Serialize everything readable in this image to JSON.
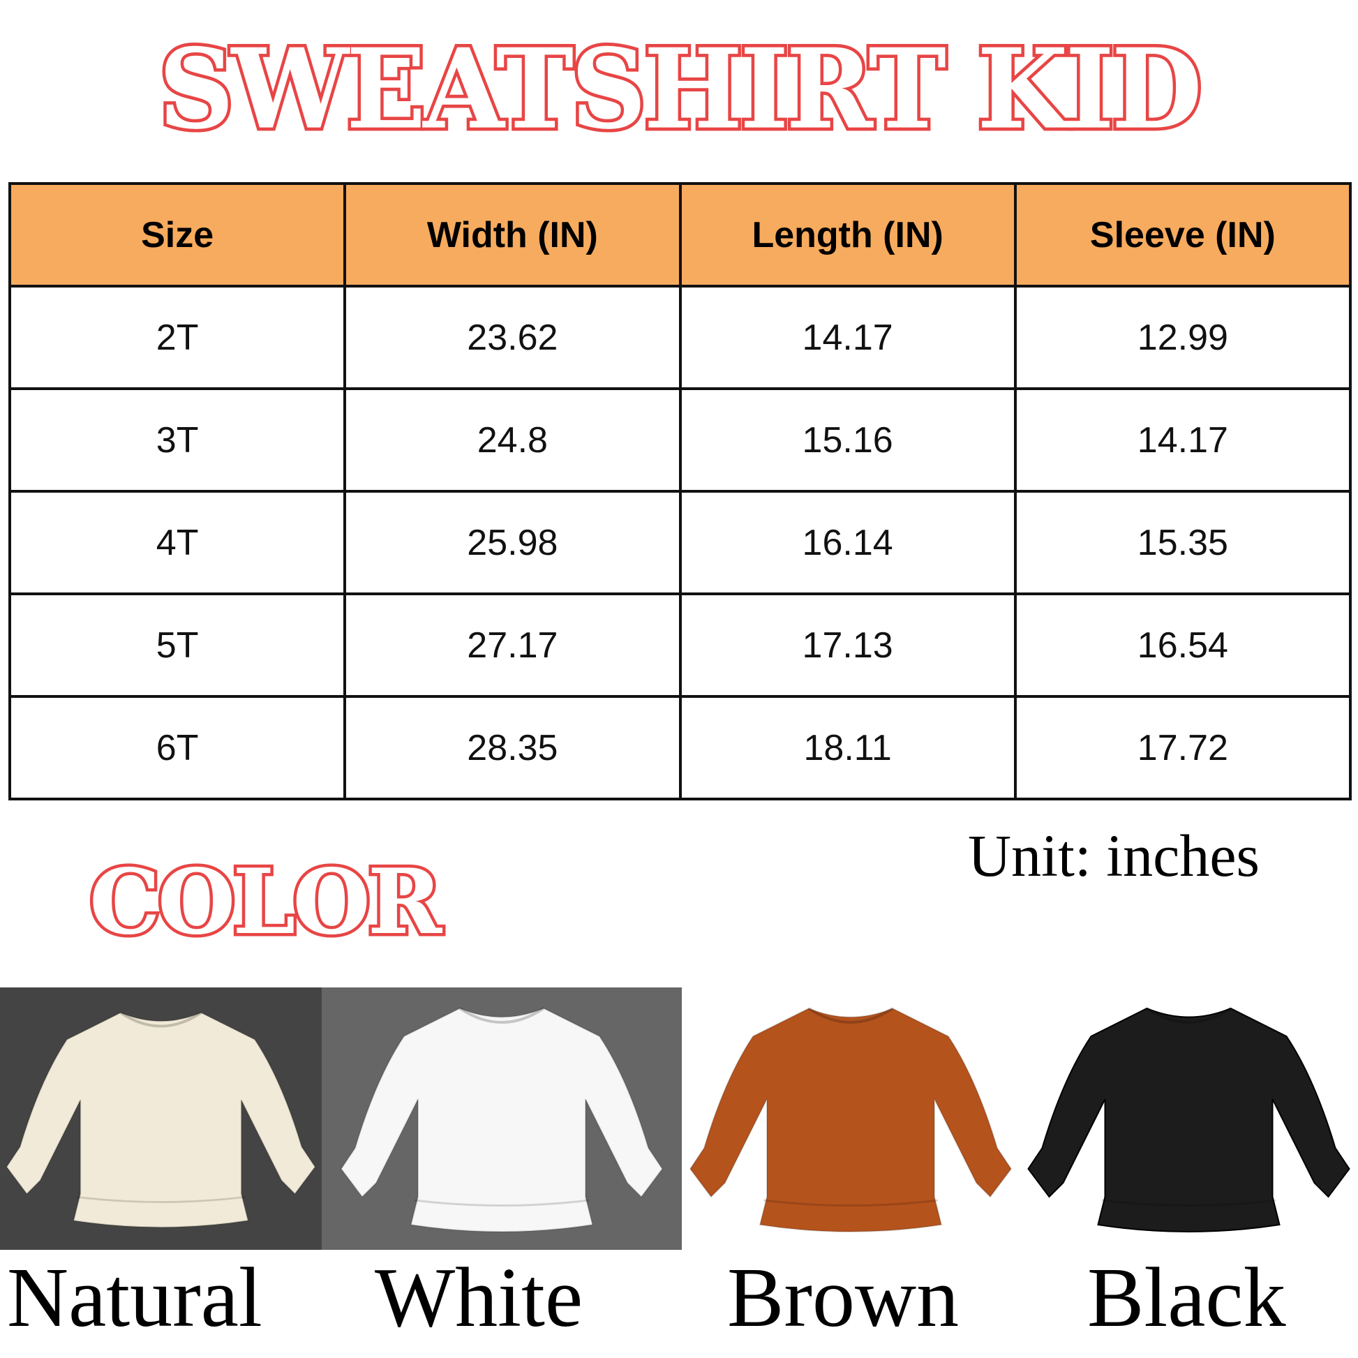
{
  "title": "SWEATSHIRT KID",
  "table": {
    "headers": [
      "Size",
      "Width (IN)",
      "Length (IN)",
      "Sleeve (IN)"
    ],
    "rows": [
      [
        "2T",
        "23.62",
        "14.17",
        "12.99"
      ],
      [
        "3T",
        "24.8",
        "15.16",
        "14.17"
      ],
      [
        "4T",
        "25.98",
        "16.14",
        "15.35"
      ],
      [
        "5T",
        "27.17",
        "17.13",
        "16.54"
      ],
      [
        "6T",
        "28.35",
        "18.11",
        "17.72"
      ]
    ]
  },
  "unit": "Unit: inches",
  "color_title": "COLOR",
  "colors": [
    {
      "name": "Natural",
      "fill": "#f2ead8",
      "bg": "#444444"
    },
    {
      "name": "White",
      "fill": "#f7f7f7",
      "bg": "#666666"
    },
    {
      "name": "Brown",
      "fill": "#b5531d",
      "bg": "#ffffff"
    },
    {
      "name": "Black",
      "fill": "#1c1c1c",
      "bg": "#ffffff"
    }
  ],
  "accent": "#e84545",
  "header_bg": "#f7ab5e"
}
